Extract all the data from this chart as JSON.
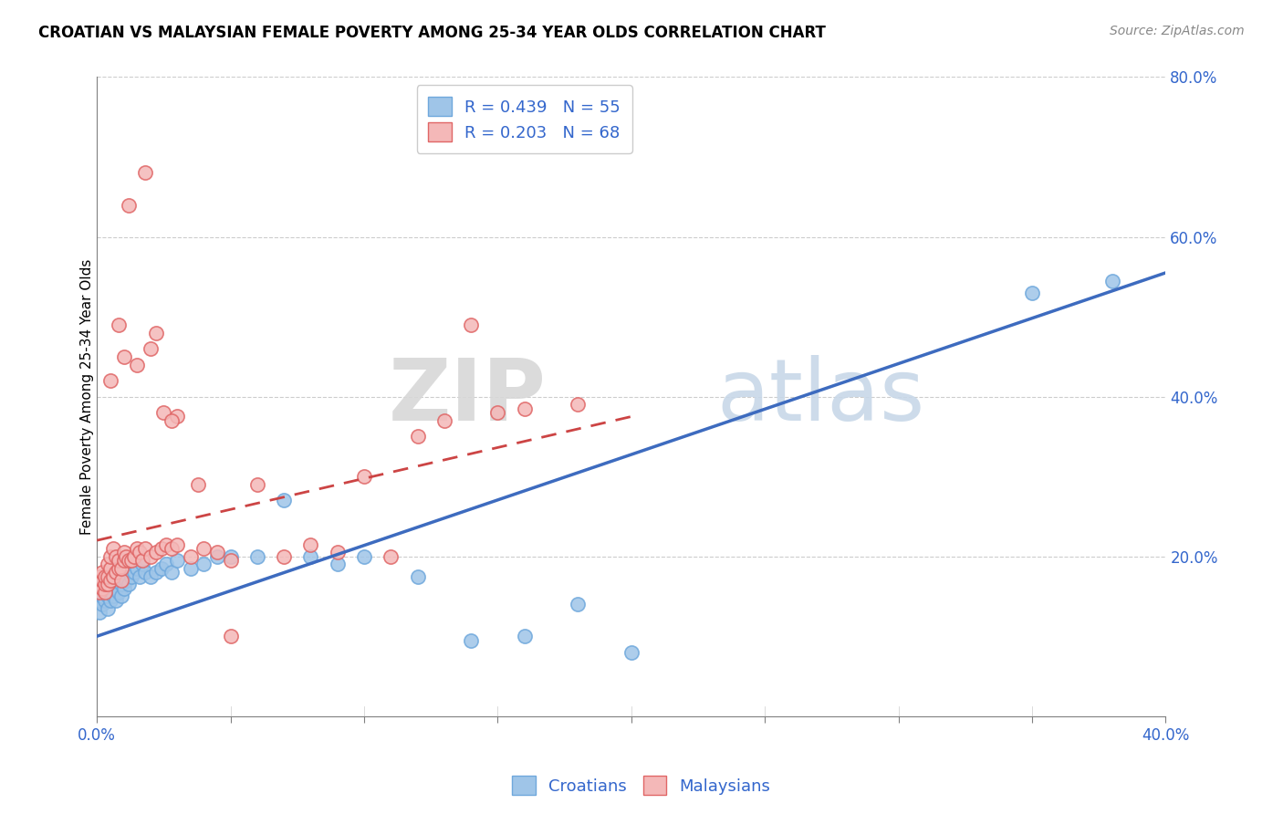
{
  "title": "CROATIAN VS MALAYSIAN FEMALE POVERTY AMONG 25-34 YEAR OLDS CORRELATION CHART",
  "source": "Source: ZipAtlas.com",
  "ylabel": "Female Poverty Among 25-34 Year Olds",
  "xlim": [
    0.0,
    0.4
  ],
  "ylim": [
    0.0,
    0.8
  ],
  "ytick_values": [
    0.2,
    0.4,
    0.6,
    0.8
  ],
  "ytick_labels": [
    "20.0%",
    "40.0%",
    "60.0%",
    "80.0%"
  ],
  "xtick_values": [
    0.0,
    0.05,
    0.1,
    0.15,
    0.2,
    0.25,
    0.3,
    0.35,
    0.4
  ],
  "xtick_labels": [
    "0.0%",
    "",
    "",
    "",
    "",
    "",
    "",
    "",
    "40.0%"
  ],
  "croatian_color": "#9fc5e8",
  "croatian_edge_color": "#6fa8dc",
  "malaysian_color": "#f4b8b8",
  "malaysian_edge_color": "#e06666",
  "croatian_line_color": "#3d6bbf",
  "malaysian_line_color": "#cc4444",
  "legend_text_color": "#3366cc",
  "background_color": "#ffffff",
  "grid_color": "#cccccc",
  "watermark": "ZIPatlas",
  "R_croatian": 0.439,
  "N_croatian": 55,
  "R_malaysian": 0.203,
  "N_malaysian": 68,
  "cr_line_x0": 0.0,
  "cr_line_y0": 0.1,
  "cr_line_x1": 0.4,
  "cr_line_y1": 0.555,
  "ma_line_x0": 0.0,
  "ma_line_y0": 0.22,
  "ma_line_x1": 0.2,
  "ma_line_y1": 0.375,
  "croatians_x": [
    0.001,
    0.001,
    0.001,
    0.002,
    0.002,
    0.002,
    0.003,
    0.003,
    0.003,
    0.004,
    0.004,
    0.004,
    0.005,
    0.005,
    0.005,
    0.006,
    0.006,
    0.007,
    0.007,
    0.008,
    0.008,
    0.009,
    0.009,
    0.01,
    0.01,
    0.011,
    0.012,
    0.013,
    0.014,
    0.015,
    0.016,
    0.017,
    0.018,
    0.02,
    0.022,
    0.024,
    0.026,
    0.028,
    0.03,
    0.035,
    0.04,
    0.045,
    0.05,
    0.06,
    0.07,
    0.08,
    0.09,
    0.1,
    0.12,
    0.14,
    0.16,
    0.18,
    0.2,
    0.35,
    0.38
  ],
  "croatians_y": [
    0.13,
    0.145,
    0.16,
    0.14,
    0.15,
    0.165,
    0.155,
    0.145,
    0.16,
    0.135,
    0.15,
    0.17,
    0.145,
    0.16,
    0.175,
    0.15,
    0.165,
    0.145,
    0.16,
    0.155,
    0.17,
    0.15,
    0.165,
    0.16,
    0.175,
    0.17,
    0.165,
    0.175,
    0.18,
    0.185,
    0.175,
    0.19,
    0.18,
    0.175,
    0.18,
    0.185,
    0.19,
    0.18,
    0.195,
    0.185,
    0.19,
    0.2,
    0.2,
    0.2,
    0.27,
    0.2,
    0.19,
    0.2,
    0.175,
    0.095,
    0.1,
    0.14,
    0.08,
    0.53,
    0.545
  ],
  "malaysians_x": [
    0.001,
    0.001,
    0.001,
    0.002,
    0.002,
    0.002,
    0.003,
    0.003,
    0.003,
    0.004,
    0.004,
    0.004,
    0.005,
    0.005,
    0.005,
    0.006,
    0.006,
    0.007,
    0.007,
    0.008,
    0.008,
    0.009,
    0.009,
    0.01,
    0.01,
    0.011,
    0.012,
    0.013,
    0.014,
    0.015,
    0.016,
    0.017,
    0.018,
    0.02,
    0.022,
    0.024,
    0.026,
    0.028,
    0.03,
    0.035,
    0.04,
    0.045,
    0.05,
    0.06,
    0.07,
    0.08,
    0.09,
    0.1,
    0.11,
    0.12,
    0.13,
    0.14,
    0.15,
    0.16,
    0.05,
    0.025,
    0.03,
    0.038,
    0.015,
    0.02,
    0.012,
    0.018,
    0.022,
    0.028,
    0.005,
    0.008,
    0.01,
    0.18
  ],
  "malaysians_y": [
    0.155,
    0.165,
    0.175,
    0.16,
    0.17,
    0.18,
    0.155,
    0.165,
    0.175,
    0.165,
    0.175,
    0.19,
    0.17,
    0.185,
    0.2,
    0.175,
    0.21,
    0.18,
    0.2,
    0.185,
    0.195,
    0.17,
    0.185,
    0.195,
    0.205,
    0.2,
    0.195,
    0.195,
    0.2,
    0.21,
    0.205,
    0.195,
    0.21,
    0.2,
    0.205,
    0.21,
    0.215,
    0.21,
    0.215,
    0.2,
    0.21,
    0.205,
    0.195,
    0.29,
    0.2,
    0.215,
    0.205,
    0.3,
    0.2,
    0.35,
    0.37,
    0.49,
    0.38,
    0.385,
    0.1,
    0.38,
    0.375,
    0.29,
    0.44,
    0.46,
    0.64,
    0.68,
    0.48,
    0.37,
    0.42,
    0.49,
    0.45,
    0.39
  ]
}
